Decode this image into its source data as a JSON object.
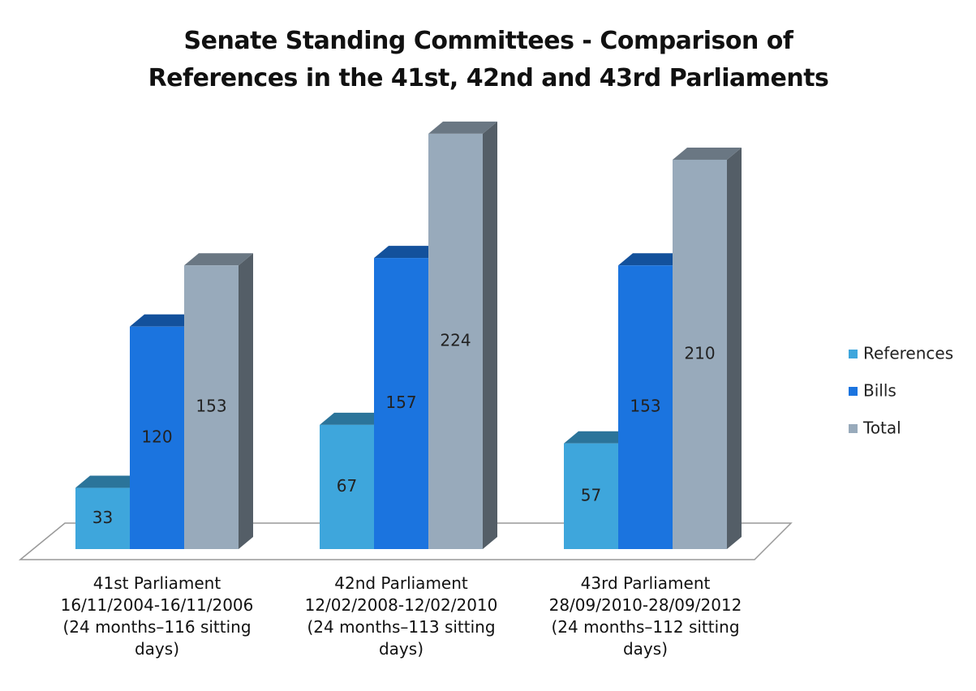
{
  "chart_data": {
    "type": "bar3d",
    "title": "Senate Standing Committees - Comparison of References in the 41st, 42nd and 43rd Parliaments",
    "categories": [
      "41st Parliament 16/11/2004-16/11/2006 (24 months–116 sitting days)",
      "42nd Parliament 12/02/2008-12/02/2010 (24 months–113 sitting days)",
      "43rd Parliament 28/09/2010-28/09/2012 (24 months–112 sitting days)"
    ],
    "series": [
      {
        "name": "References",
        "color": "#3ea6dc",
        "values": [
          33,
          67,
          57
        ]
      },
      {
        "name": "Bills",
        "color": "#1b74df",
        "values": [
          120,
          157,
          153
        ]
      },
      {
        "name": "Total",
        "color": "#98aabb",
        "values": [
          153,
          224,
          210
        ]
      }
    ],
    "legend": "right"
  }
}
